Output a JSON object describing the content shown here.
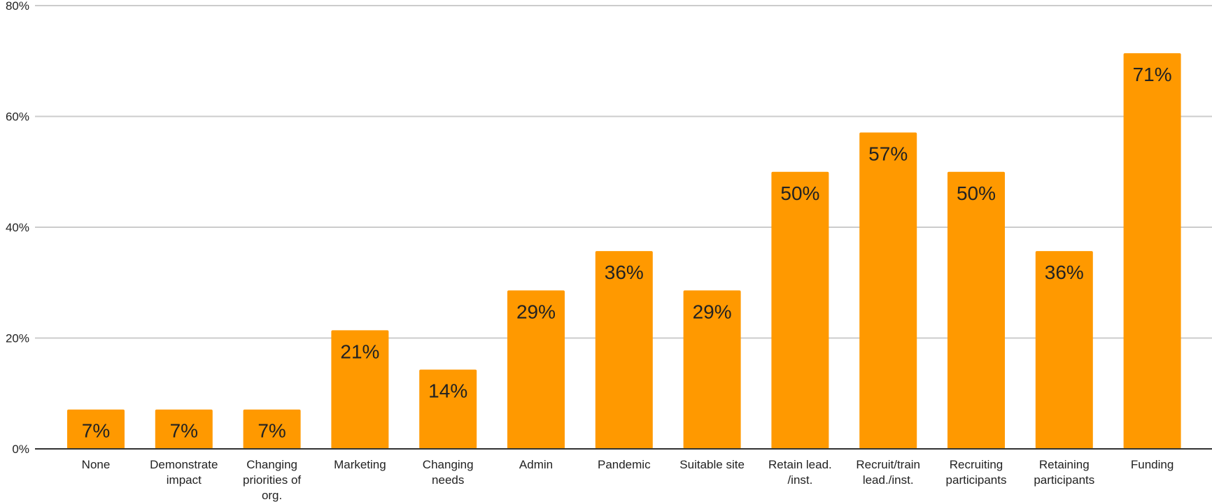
{
  "chart_data": {
    "type": "bar",
    "categories": [
      [
        "None"
      ],
      [
        "Demonstrate",
        "impact"
      ],
      [
        "Changing",
        "priorities of",
        "org."
      ],
      [
        "Marketing"
      ],
      [
        "Changing",
        "needs"
      ],
      [
        "Admin"
      ],
      [
        "Pandemic"
      ],
      [
        "Suitable site"
      ],
      [
        "Retain lead.",
        "/inst."
      ],
      [
        "Recruit/train",
        "lead./inst."
      ],
      [
        "Recruiting",
        "participants"
      ],
      [
        "Retaining",
        "participants"
      ],
      [
        "Funding"
      ]
    ],
    "values": [
      7.1,
      7.1,
      7.1,
      21.4,
      14.3,
      28.6,
      35.7,
      28.6,
      50,
      57.1,
      50,
      35.7,
      71.4
    ],
    "data_labels": [
      "7%",
      "7%",
      "7%",
      "21%",
      "14%",
      "29%",
      "36%",
      "29%",
      "50%",
      "57%",
      "50%",
      "36%",
      "71%"
    ],
    "yticks": [
      0,
      20,
      40,
      60,
      80
    ],
    "ytick_labels": [
      "0%",
      "20%",
      "40%",
      "60%",
      "80%"
    ],
    "ylim": [
      0,
      80
    ],
    "grid": true,
    "legend": "none",
    "bar_color": "#ff9900"
  }
}
